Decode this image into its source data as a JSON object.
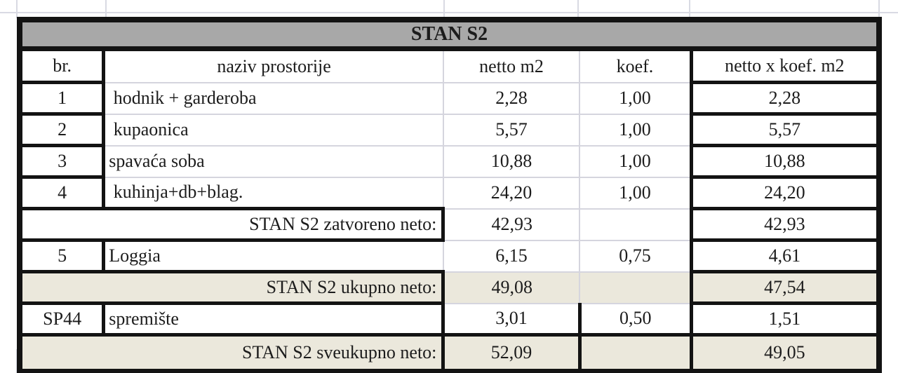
{
  "title": "STAN S2",
  "columns": [
    "br.",
    "naziv prostorije",
    "netto m2",
    "koef.",
    "netto x koef. m2"
  ],
  "rows": [
    {
      "type": "data",
      "br": "1",
      "name": " hodnik + garderoba",
      "netto": "2,28",
      "koef": "1,00",
      "total": "2,28",
      "shaded": false,
      "boxed": false
    },
    {
      "type": "data",
      "br": "2",
      "name": " kupaonica",
      "netto": "5,57",
      "koef": "1,00",
      "total": "5,57",
      "shaded": false,
      "boxed": false
    },
    {
      "type": "data",
      "br": "3",
      "name": "spavaća soba",
      "netto": "10,88",
      "koef": "1,00",
      "total": "10,88",
      "shaded": false,
      "boxed": false
    },
    {
      "type": "data",
      "br": "4",
      "name": " kuhinja+db+blag.",
      "netto": "24,20",
      "koef": "1,00",
      "total": "24,20",
      "shaded": false,
      "boxed": false
    },
    {
      "type": "subtotal",
      "label": "STAN S2 zatvoreno neto:",
      "netto": "42,93",
      "koef": "",
      "total": "42,93",
      "shaded": false,
      "boxed": false
    },
    {
      "type": "data",
      "br": "5",
      "name": "Loggia",
      "netto": "6,15",
      "koef": "0,75",
      "total": "4,61",
      "shaded": false,
      "boxed": false
    },
    {
      "type": "subtotal",
      "label": "STAN S2 ukupno neto:",
      "netto": "49,08",
      "koef": "",
      "total": "47,54",
      "shaded": true,
      "boxed": false
    },
    {
      "type": "data",
      "br": "SP44",
      "name": "spremište",
      "netto": "3,01",
      "koef": "0,50",
      "total": "1,51",
      "shaded": false,
      "boxed": true
    },
    {
      "type": "subtotal",
      "label": "STAN S2 sveukupno neto:",
      "netto": "52,09",
      "koef": "",
      "total": "49,05",
      "shaded": true,
      "boxed": true
    }
  ],
  "colors": {
    "header_background": "#a8a8a8",
    "subtotal_background": "#ebe8dc",
    "border": "#131313",
    "gridline": "#d5d5de"
  }
}
